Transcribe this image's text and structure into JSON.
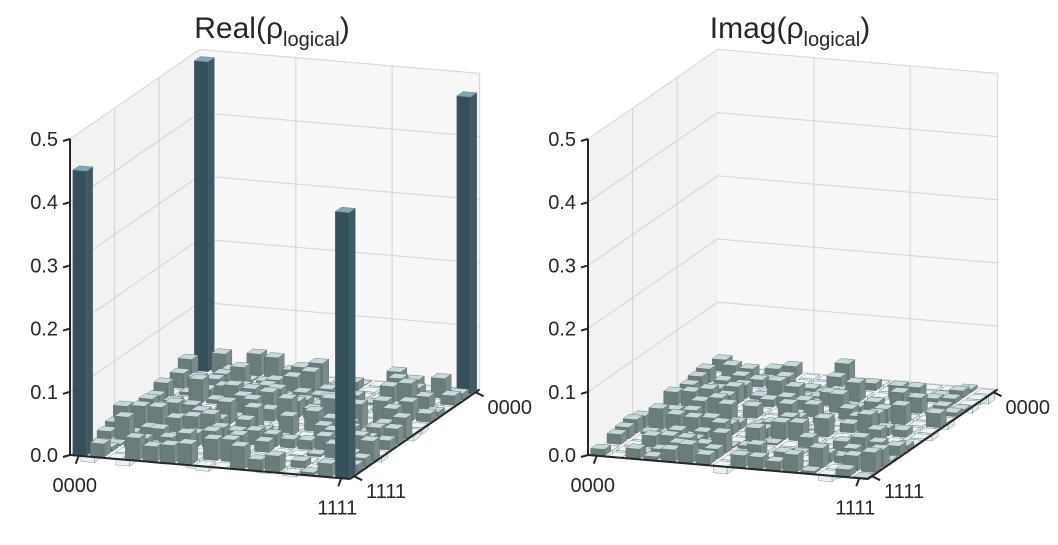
{
  "chart_data": [
    {
      "type": "bar3d",
      "title_main": "Real(ρ",
      "title_sub": "logical",
      "title_end": ")",
      "z_ticks": [
        "0.0",
        "0.1",
        "0.2",
        "0.3",
        "0.4",
        "0.5"
      ],
      "zlim": [
        0,
        0.5
      ],
      "x_tick_labels": [
        "0000",
        "1111"
      ],
      "y_tick_labels": [
        "0000",
        "1111"
      ],
      "grid": true,
      "bar_color_large": "#3f5964",
      "bar_color_small": "#7a8b88",
      "bar_color_negative": "#d9e6ea",
      "large_bars": [
        {
          "row": 0,
          "col": 0,
          "value": 0.45
        },
        {
          "row": 0,
          "col": 15,
          "value": 0.49
        },
        {
          "row": 15,
          "col": 0,
          "value": 0.42
        },
        {
          "row": 15,
          "col": 15,
          "value": 0.47
        }
      ],
      "small_bar_max": 0.06
    },
    {
      "type": "bar3d",
      "title_main": "Imag(ρ",
      "title_sub": "logical",
      "title_end": ")",
      "z_ticks": [
        "0.0",
        "0.1",
        "0.2",
        "0.3",
        "0.4",
        "0.5"
      ],
      "zlim": [
        0,
        0.5
      ],
      "x_tick_labels": [
        "0000",
        "1111"
      ],
      "y_tick_labels": [
        "0000",
        "1111"
      ],
      "grid": true,
      "bar_color_small": "#7a8b88",
      "bar_color_negative": "#d9e6ea",
      "large_bars": [],
      "small_bar_max": 0.05
    }
  ]
}
